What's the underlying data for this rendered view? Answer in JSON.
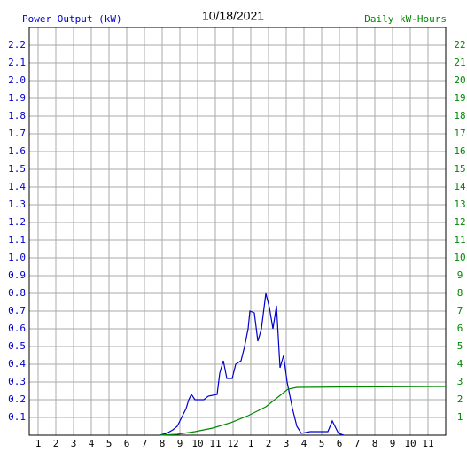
{
  "chart_data": {
    "type": "line",
    "title": "10/18/2021",
    "ylabel": "Power Output (kW)",
    "y2label": "Daily kW-Hours",
    "xlim": [
      0.5,
      24
    ],
    "xticks": [
      1,
      2,
      3,
      4,
      5,
      6,
      7,
      8,
      9,
      10,
      11,
      12,
      {
        "value": 13,
        "label": "1"
      },
      {
        "value": 14,
        "label": "2"
      },
      {
        "value": 15,
        "label": "3"
      },
      {
        "value": 16,
        "label": "4"
      },
      {
        "value": 17,
        "label": "5"
      },
      {
        "value": 18,
        "label": "6"
      },
      {
        "value": 19,
        "label": "7"
      },
      {
        "value": 20,
        "label": "8"
      },
      {
        "value": 21,
        "label": "9"
      },
      {
        "value": 22,
        "label": "10"
      },
      {
        "value": 23,
        "label": "11"
      }
    ],
    "ylim": [
      0,
      2.3
    ],
    "yticks": [
      0.1,
      0.2,
      0.3,
      0.4,
      0.5,
      0.6,
      0.7,
      0.8,
      0.9,
      {
        "value": 1,
        "label": "1.0"
      },
      1.1,
      1.2,
      1.3,
      1.4,
      1.5,
      1.6,
      1.7,
      1.8,
      1.9,
      {
        "value": 2,
        "label": "2.0"
      },
      2.1,
      2.2
    ],
    "y2lim": [
      0,
      23
    ],
    "y2ticks": [
      1,
      2,
      3,
      4,
      5,
      6,
      7,
      8,
      9,
      10,
      11,
      12,
      13,
      14,
      15,
      16,
      17,
      18,
      19,
      20,
      21,
      22
    ],
    "grid": true,
    "series": [
      {
        "name": "Power Output (kW)",
        "color": "#0000cc",
        "x": [
          7.85,
          8.25,
          8.6,
          8.85,
          9.1,
          9.35,
          9.5,
          9.65,
          9.85,
          10.35,
          10.6,
          11.1,
          11.25,
          11.45,
          11.65,
          11.95,
          12.15,
          12.45,
          12.65,
          12.85,
          12.95,
          13.2,
          13.4,
          13.6,
          13.85,
          14.05,
          14.25,
          14.45,
          14.65,
          14.85,
          15.05,
          15.35,
          15.6,
          15.85,
          16.35,
          17.35,
          17.6,
          17.75,
          17.95,
          18.25
        ],
        "values": [
          0,
          0.01,
          0.03,
          0.05,
          0.1,
          0.15,
          0.2,
          0.23,
          0.2,
          0.2,
          0.22,
          0.23,
          0.35,
          0.42,
          0.32,
          0.32,
          0.4,
          0.42,
          0.5,
          0.6,
          0.7,
          0.69,
          0.53,
          0.6,
          0.8,
          0.72,
          0.6,
          0.73,
          0.38,
          0.45,
          0.3,
          0.15,
          0.05,
          0.01,
          0.02,
          0.02,
          0.08,
          0.05,
          0.01,
          0
        ]
      },
      {
        "name": "Daily kW-Hours",
        "color": "#008800",
        "axis": "y2",
        "x": [
          7.85,
          8.85,
          9.85,
          10.85,
          11.85,
          12.85,
          13.85,
          14.6,
          15.1,
          15.6,
          17.85,
          24
        ],
        "values": [
          0,
          0.05,
          0.2,
          0.4,
          0.7,
          1.1,
          1.6,
          2.2,
          2.6,
          2.7,
          2.72,
          2.75
        ]
      }
    ]
  }
}
